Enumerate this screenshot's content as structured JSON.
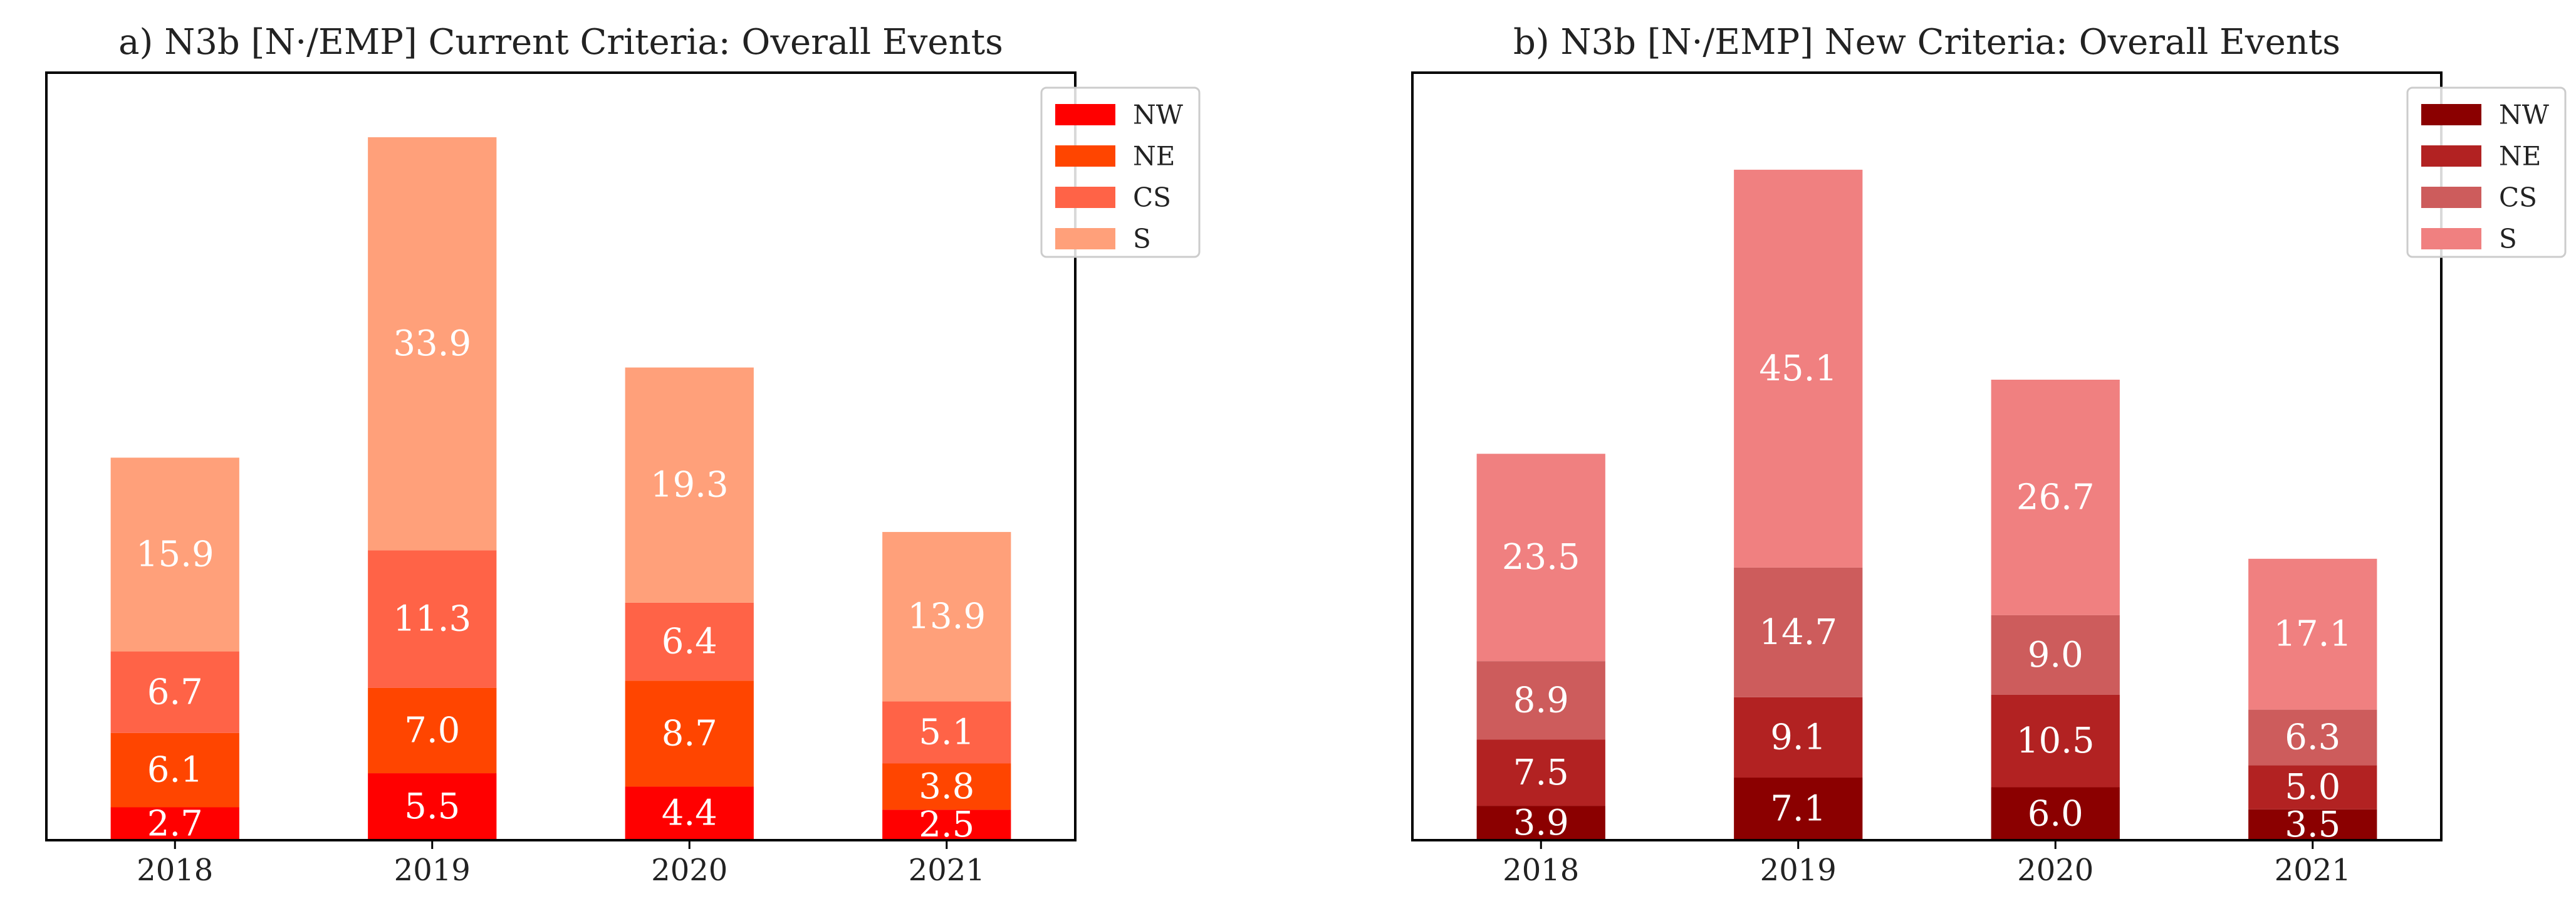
{
  "chart_data": [
    {
      "type": "bar",
      "stacked": true,
      "title": "a) N3b [N·/EMP] Current Criteria: Overall Events",
      "xlabel": "",
      "ylabel": "",
      "categories": [
        "2018",
        "2019",
        "2020",
        "2021"
      ],
      "ylim": [
        0,
        63
      ],
      "legend_position": "top-right",
      "series": [
        {
          "name": "NW",
          "color": "#ff0000",
          "values": [
            2.7,
            5.5,
            4.4,
            2.5
          ]
        },
        {
          "name": "NE",
          "color": "#ff4500",
          "values": [
            6.1,
            7.0,
            8.7,
            3.8
          ]
        },
        {
          "name": "CS",
          "color": "#ff6347",
          "values": [
            6.7,
            11.3,
            6.4,
            5.1
          ]
        },
        {
          "name": "S",
          "color": "#ffa07a",
          "values": [
            15.9,
            33.9,
            19.3,
            13.9
          ]
        }
      ]
    },
    {
      "type": "bar",
      "stacked": true,
      "title": "b) N3b [N·/EMP] New Criteria: Overall Events",
      "xlabel": "",
      "ylabel": "",
      "categories": [
        "2018",
        "2019",
        "2020",
        "2021"
      ],
      "ylim": [
        0,
        87
      ],
      "legend_position": "top-right",
      "series": [
        {
          "name": "NW",
          "color": "#8b0000",
          "values": [
            3.9,
            7.1,
            6.0,
            3.5
          ]
        },
        {
          "name": "NE",
          "color": "#b22222",
          "values": [
            7.5,
            9.1,
            10.5,
            5.0
          ]
        },
        {
          "name": "CS",
          "color": "#cd5c5c",
          "values": [
            8.9,
            14.7,
            9.0,
            6.3
          ]
        },
        {
          "name": "S",
          "color": "#f08080",
          "values": [
            23.5,
            45.1,
            26.7,
            17.1
          ]
        }
      ]
    }
  ]
}
